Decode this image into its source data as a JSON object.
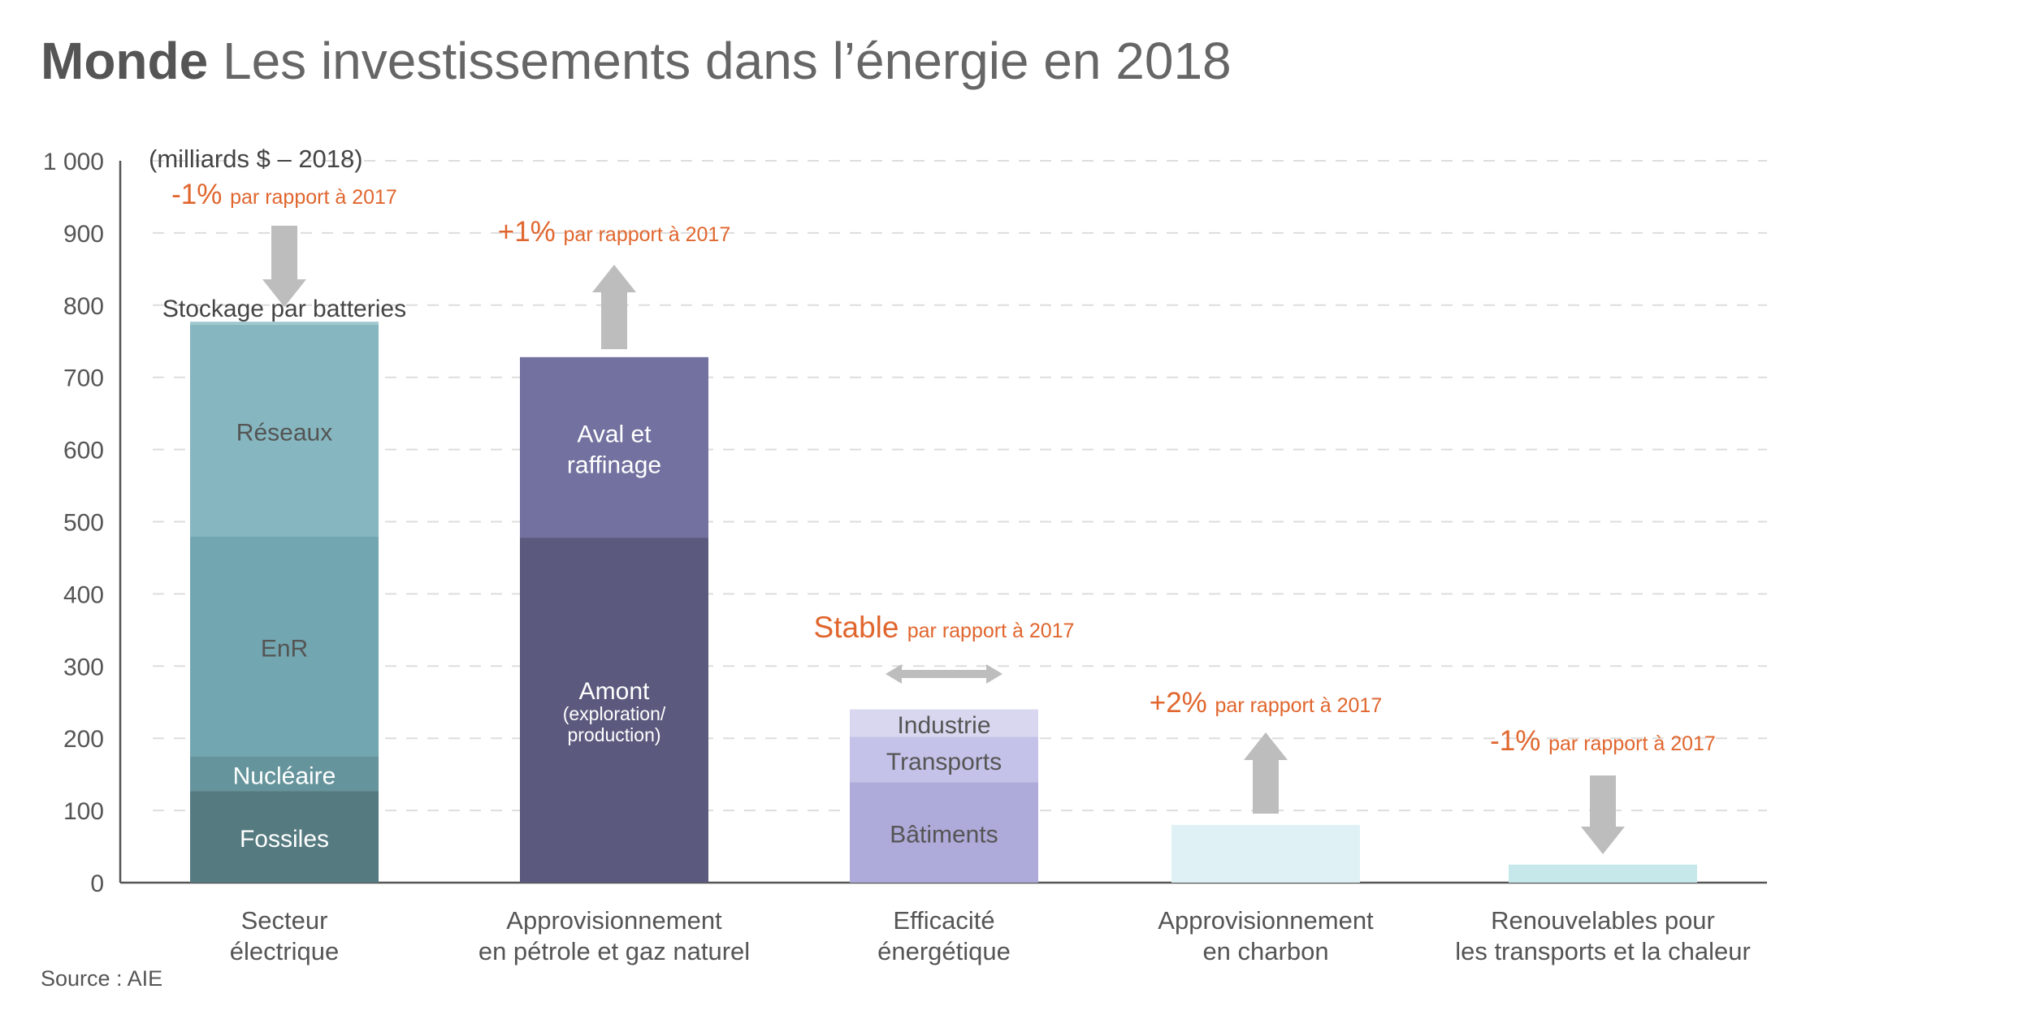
{
  "title": {
    "bold": "Monde",
    "rest": " Les investissements dans l’énergie en 2018"
  },
  "source": "Source : AIE",
  "colors": {
    "arrow": "#bdbdbd",
    "change": "#e0662e",
    "axis": "#555555",
    "grid": "#dddddd",
    "label_dark": "#555555",
    "label_light": "#ffffff"
  },
  "chart_data": {
    "type": "bar",
    "stacked": true,
    "unit_label": "(milliards $ – 2018)",
    "ylim": [
      0,
      1000
    ],
    "yticks": [
      0,
      100,
      200,
      300,
      400,
      500,
      600,
      700,
      800,
      900,
      1000
    ],
    "ytick_labels": [
      "0",
      "100",
      "200",
      "300",
      "400",
      "500",
      "600",
      "700",
      "800",
      "900",
      "1 000"
    ],
    "grid": "horizontal-dashed",
    "categories": [
      {
        "label": [
          "Secteur",
          "électrique"
        ],
        "segments": [
          {
            "name": "Fossiles",
            "label": [
              "Fossiles"
            ],
            "value": 127,
            "color": "#557a80",
            "text_color": "#ffffff"
          },
          {
            "name": "Nucléaire",
            "label": [
              "Nucléaire"
            ],
            "value": 48,
            "color": "#65949c",
            "text_color": "#ffffff"
          },
          {
            "name": "EnR",
            "label": [
              "EnR"
            ],
            "value": 305,
            "color": "#72a6b0",
            "text_color": "#555555"
          },
          {
            "name": "Réseaux",
            "label": [
              "Réseaux"
            ],
            "value": 293,
            "color": "#86b7c0",
            "text_color": "#555555"
          },
          {
            "name": "Stockage par batteries",
            "label": [
              "Stockage par batteries"
            ],
            "value": 4,
            "color": "#9dc6cd",
            "text_color": "#444444",
            "label_above": true
          }
        ],
        "change": {
          "value": "-1%",
          "text": "par rapport à 2017",
          "direction": "down"
        }
      },
      {
        "label": [
          "Approvisionnement",
          "en pétrole et gaz naturel"
        ],
        "segments": [
          {
            "name": "Amont",
            "label": [
              "Amont",
              "(exploration/",
              "production)"
            ],
            "value": 478,
            "color": "#5b5a7e",
            "text_color": "#ffffff"
          },
          {
            "name": "Aval et raffinage",
            "label": [
              "Aval et",
              "raffinage"
            ],
            "value": 250,
            "color": "#72719f",
            "text_color": "#ffffff"
          }
        ],
        "change": {
          "value": "+1%",
          "text": "par rapport à 2017",
          "direction": "up"
        }
      },
      {
        "label": [
          "Efficacité",
          "énergétique"
        ],
        "segments": [
          {
            "name": "Bâtiments",
            "label": [
              "Bâtiments"
            ],
            "value": 139,
            "color": "#aeaada",
            "text_color": "#555555"
          },
          {
            "name": "Transports",
            "label": [
              "Transports"
            ],
            "value": 63,
            "color": "#c4c2e8",
            "text_color": "#555555"
          },
          {
            "name": "Industrie",
            "label": [
              "Industrie"
            ],
            "value": 38,
            "color": "#d8d7ef",
            "text_color": "#555555"
          }
        ],
        "change": {
          "value": "Stable",
          "text": "par rapport à 2017",
          "direction": "stable"
        }
      },
      {
        "label": [
          "Approvisionnement",
          "en charbon"
        ],
        "segments": [
          {
            "name": "Charbon",
            "label": [],
            "value": 80,
            "color": "#dff1f4",
            "text_color": "#555555"
          }
        ],
        "change": {
          "value": "+2%",
          "text": "par rapport à 2017",
          "direction": "up"
        }
      },
      {
        "label": [
          "Renouvelables pour",
          "les transports et la chaleur"
        ],
        "segments": [
          {
            "name": "Renouvelables transports et chaleur",
            "label": [],
            "value": 25,
            "color": "#c6e8eb",
            "text_color": "#555555"
          }
        ],
        "change": {
          "value": "-1%",
          "text": "par rapport à 2017",
          "direction": "down"
        }
      }
    ]
  }
}
